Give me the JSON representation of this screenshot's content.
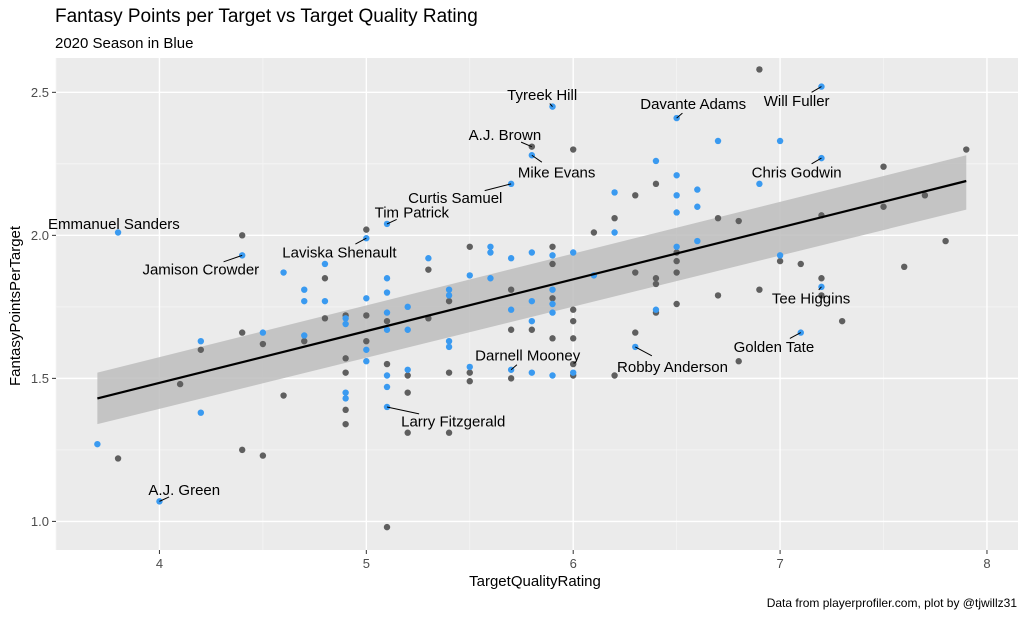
{
  "title": "Fantasy Points per Target vs Target Quality Rating",
  "subtitle": "2020 Season in Blue",
  "caption": "Data from playerprofiler.com, plot by @tjwillz31",
  "colors": {
    "panel": "#ebebeb",
    "grid_major": "#ffffff",
    "grid_minor": "#f5f5f5",
    "season_2020": "#3a9af0",
    "other_seasons": "#5f5f5f",
    "trend_line": "#000000",
    "confidence_band": "#bdbdbd"
  },
  "chart_data": {
    "type": "scatter",
    "xlabel": "TargetQualityRating",
    "ylabel": "FantasyPointsPerTarget",
    "xlim": [
      3.5,
      8.15
    ],
    "ylim": [
      0.9,
      2.62
    ],
    "x_ticks": [
      4,
      5,
      6,
      7,
      8
    ],
    "y_ticks": [
      1.0,
      1.5,
      2.0,
      2.5
    ],
    "x_tick_labels": [
      "4",
      "5",
      "6",
      "7",
      "8"
    ],
    "y_tick_labels": [
      "1.0",
      "1.5",
      "2.0",
      "2.5"
    ],
    "grid": true,
    "legend": "none",
    "trend": {
      "x": [
        3.7,
        7.9
      ],
      "y": [
        1.43,
        2.19
      ],
      "band_lo": [
        1.34,
        2.09
      ],
      "band_hi": [
        1.52,
        2.28
      ]
    },
    "series": [
      {
        "season": "2020",
        "points": [
          [
            3.7,
            1.27
          ],
          [
            3.8,
            2.01
          ],
          [
            4.0,
            1.07
          ],
          [
            4.2,
            1.63
          ],
          [
            4.2,
            1.38
          ],
          [
            4.4,
            1.93
          ],
          [
            4.5,
            1.66
          ],
          [
            4.6,
            1.87
          ],
          [
            4.7,
            1.81
          ],
          [
            4.7,
            1.77
          ],
          [
            4.7,
            1.65
          ],
          [
            4.8,
            1.9
          ],
          [
            4.8,
            1.77
          ],
          [
            4.9,
            1.71
          ],
          [
            4.9,
            1.69
          ],
          [
            4.9,
            1.45
          ],
          [
            4.9,
            1.43
          ],
          [
            5.0,
            1.99
          ],
          [
            5.0,
            1.78
          ],
          [
            5.0,
            1.6
          ],
          [
            5.0,
            1.56
          ],
          [
            5.1,
            2.04
          ],
          [
            5.1,
            1.85
          ],
          [
            5.1,
            1.8
          ],
          [
            5.1,
            1.73
          ],
          [
            5.1,
            1.67
          ],
          [
            5.1,
            1.51
          ],
          [
            5.1,
            1.47
          ],
          [
            5.1,
            1.4
          ],
          [
            5.2,
            1.75
          ],
          [
            5.2,
            1.67
          ],
          [
            5.2,
            1.53
          ],
          [
            5.3,
            1.92
          ],
          [
            5.4,
            1.81
          ],
          [
            5.4,
            1.79
          ],
          [
            5.4,
            1.63
          ],
          [
            5.4,
            1.61
          ],
          [
            5.5,
            1.86
          ],
          [
            5.5,
            1.54
          ],
          [
            5.6,
            1.96
          ],
          [
            5.6,
            1.94
          ],
          [
            5.6,
            1.85
          ],
          [
            5.7,
            2.18
          ],
          [
            5.7,
            1.92
          ],
          [
            5.7,
            1.74
          ],
          [
            5.7,
            1.53
          ],
          [
            5.8,
            2.28
          ],
          [
            5.8,
            1.94
          ],
          [
            5.8,
            1.77
          ],
          [
            5.8,
            1.7
          ],
          [
            5.8,
            1.52
          ],
          [
            5.9,
            2.45
          ],
          [
            5.9,
            1.93
          ],
          [
            5.9,
            1.81
          ],
          [
            5.9,
            1.76
          ],
          [
            5.9,
            1.73
          ],
          [
            5.9,
            1.51
          ],
          [
            6.0,
            1.94
          ],
          [
            6.0,
            1.52
          ],
          [
            6.1,
            1.86
          ],
          [
            6.2,
            2.15
          ],
          [
            6.2,
            2.01
          ],
          [
            6.3,
            1.61
          ],
          [
            6.4,
            2.26
          ],
          [
            6.4,
            1.74
          ],
          [
            6.5,
            2.41
          ],
          [
            6.5,
            2.21
          ],
          [
            6.5,
            2.14
          ],
          [
            6.5,
            2.08
          ],
          [
            6.5,
            1.96
          ],
          [
            6.6,
            2.16
          ],
          [
            6.6,
            2.1
          ],
          [
            6.6,
            1.98
          ],
          [
            6.7,
            2.33
          ],
          [
            6.9,
            2.18
          ],
          [
            7.0,
            2.33
          ],
          [
            7.0,
            1.93
          ],
          [
            7.1,
            1.66
          ],
          [
            7.2,
            2.52
          ],
          [
            7.2,
            2.27
          ],
          [
            7.2,
            1.82
          ]
        ]
      },
      {
        "season": "other",
        "points": [
          [
            3.8,
            1.22
          ],
          [
            4.1,
            1.48
          ],
          [
            4.2,
            1.6
          ],
          [
            4.4,
            2.0
          ],
          [
            4.4,
            1.66
          ],
          [
            4.4,
            1.25
          ],
          [
            4.5,
            1.62
          ],
          [
            4.5,
            1.23
          ],
          [
            4.6,
            1.44
          ],
          [
            4.7,
            1.63
          ],
          [
            4.8,
            1.85
          ],
          [
            4.8,
            1.71
          ],
          [
            4.9,
            1.72
          ],
          [
            4.9,
            1.57
          ],
          [
            4.9,
            1.52
          ],
          [
            4.9,
            1.39
          ],
          [
            4.9,
            1.34
          ],
          [
            5.0,
            2.02
          ],
          [
            5.0,
            1.72
          ],
          [
            5.0,
            1.63
          ],
          [
            5.1,
            1.7
          ],
          [
            5.1,
            1.55
          ],
          [
            5.1,
            0.98
          ],
          [
            5.2,
            1.51
          ],
          [
            5.2,
            1.45
          ],
          [
            5.2,
            1.31
          ],
          [
            5.3,
            1.88
          ],
          [
            5.3,
            1.71
          ],
          [
            5.4,
            1.77
          ],
          [
            5.4,
            1.52
          ],
          [
            5.4,
            1.31
          ],
          [
            5.5,
            1.96
          ],
          [
            5.5,
            1.52
          ],
          [
            5.5,
            1.49
          ],
          [
            5.7,
            1.81
          ],
          [
            5.7,
            1.67
          ],
          [
            5.7,
            1.5
          ],
          [
            5.8,
            2.31
          ],
          [
            5.8,
            1.67
          ],
          [
            5.9,
            1.96
          ],
          [
            5.9,
            1.9
          ],
          [
            5.9,
            1.78
          ],
          [
            5.9,
            1.64
          ],
          [
            6.0,
            2.3
          ],
          [
            6.0,
            1.74
          ],
          [
            6.0,
            1.7
          ],
          [
            6.0,
            1.64
          ],
          [
            6.0,
            1.55
          ],
          [
            6.0,
            1.51
          ],
          [
            6.1,
            2.01
          ],
          [
            6.2,
            2.06
          ],
          [
            6.2,
            1.51
          ],
          [
            6.3,
            2.14
          ],
          [
            6.3,
            1.87
          ],
          [
            6.3,
            1.66
          ],
          [
            6.4,
            2.18
          ],
          [
            6.4,
            1.85
          ],
          [
            6.4,
            1.83
          ],
          [
            6.4,
            1.73
          ],
          [
            6.5,
            1.94
          ],
          [
            6.5,
            1.91
          ],
          [
            6.5,
            1.87
          ],
          [
            6.5,
            1.76
          ],
          [
            6.7,
            2.06
          ],
          [
            6.7,
            1.79
          ],
          [
            6.8,
            2.05
          ],
          [
            6.8,
            1.56
          ],
          [
            6.9,
            2.58
          ],
          [
            6.9,
            1.81
          ],
          [
            7.0,
            1.91
          ],
          [
            7.1,
            1.9
          ],
          [
            7.2,
            2.07
          ],
          [
            7.2,
            1.85
          ],
          [
            7.2,
            1.79
          ],
          [
            7.3,
            1.7
          ],
          [
            7.5,
            2.24
          ],
          [
            7.5,
            2.1
          ],
          [
            7.6,
            1.89
          ],
          [
            7.7,
            2.14
          ],
          [
            7.8,
            1.98
          ],
          [
            7.9,
            2.3
          ]
        ]
      }
    ],
    "annotations": [
      {
        "text": "Tyreek Hill",
        "x": 5.9,
        "y": 2.45,
        "lx": 5.85,
        "ly": 2.49
      },
      {
        "text": "Davante Adams",
        "x": 6.5,
        "y": 2.41,
        "lx": 6.58,
        "ly": 2.46
      },
      {
        "text": "Will Fuller",
        "x": 7.2,
        "y": 2.52,
        "lx": 7.08,
        "ly": 2.47
      },
      {
        "text": "A.J. Brown",
        "x": 5.8,
        "y": 2.31,
        "lx": 5.67,
        "ly": 2.35
      },
      {
        "text": "Chris Godwin",
        "x": 7.2,
        "y": 2.27,
        "lx": 7.08,
        "ly": 2.22
      },
      {
        "text": "Mike Evans",
        "x": 5.8,
        "y": 2.28,
        "lx": 5.92,
        "ly": 2.22
      },
      {
        "text": "Curtis Samuel",
        "x": 5.7,
        "y": 2.18,
        "lx": 5.43,
        "ly": 2.13
      },
      {
        "text": "Tim Patrick",
        "x": 5.1,
        "y": 2.04,
        "lx": 5.22,
        "ly": 2.08
      },
      {
        "text": "Emmanuel Sanders",
        "x": 3.8,
        "y": 2.01,
        "lx": 3.78,
        "ly": 2.04
      },
      {
        "text": "Laviska Shenault",
        "x": 5.0,
        "y": 1.99,
        "lx": 4.87,
        "ly": 1.94
      },
      {
        "text": "Jamison Crowder",
        "x": 4.4,
        "y": 1.93,
        "lx": 4.2,
        "ly": 1.88
      },
      {
        "text": "Tee Higgins",
        "x": 7.2,
        "y": 1.82,
        "lx": 7.15,
        "ly": 1.78
      },
      {
        "text": "Golden Tate",
        "x": 7.1,
        "y": 1.66,
        "lx": 6.97,
        "ly": 1.61
      },
      {
        "text": "Darnell Mooney",
        "x": 5.7,
        "y": 1.53,
        "lx": 5.78,
        "ly": 1.58
      },
      {
        "text": "Robby Anderson",
        "x": 6.3,
        "y": 1.61,
        "lx": 6.48,
        "ly": 1.54
      },
      {
        "text": "Larry Fitzgerald",
        "x": 5.1,
        "y": 1.4,
        "lx": 5.42,
        "ly": 1.35
      },
      {
        "text": "A.J. Green",
        "x": 4.0,
        "y": 1.07,
        "lx": 4.12,
        "ly": 1.11
      }
    ]
  }
}
